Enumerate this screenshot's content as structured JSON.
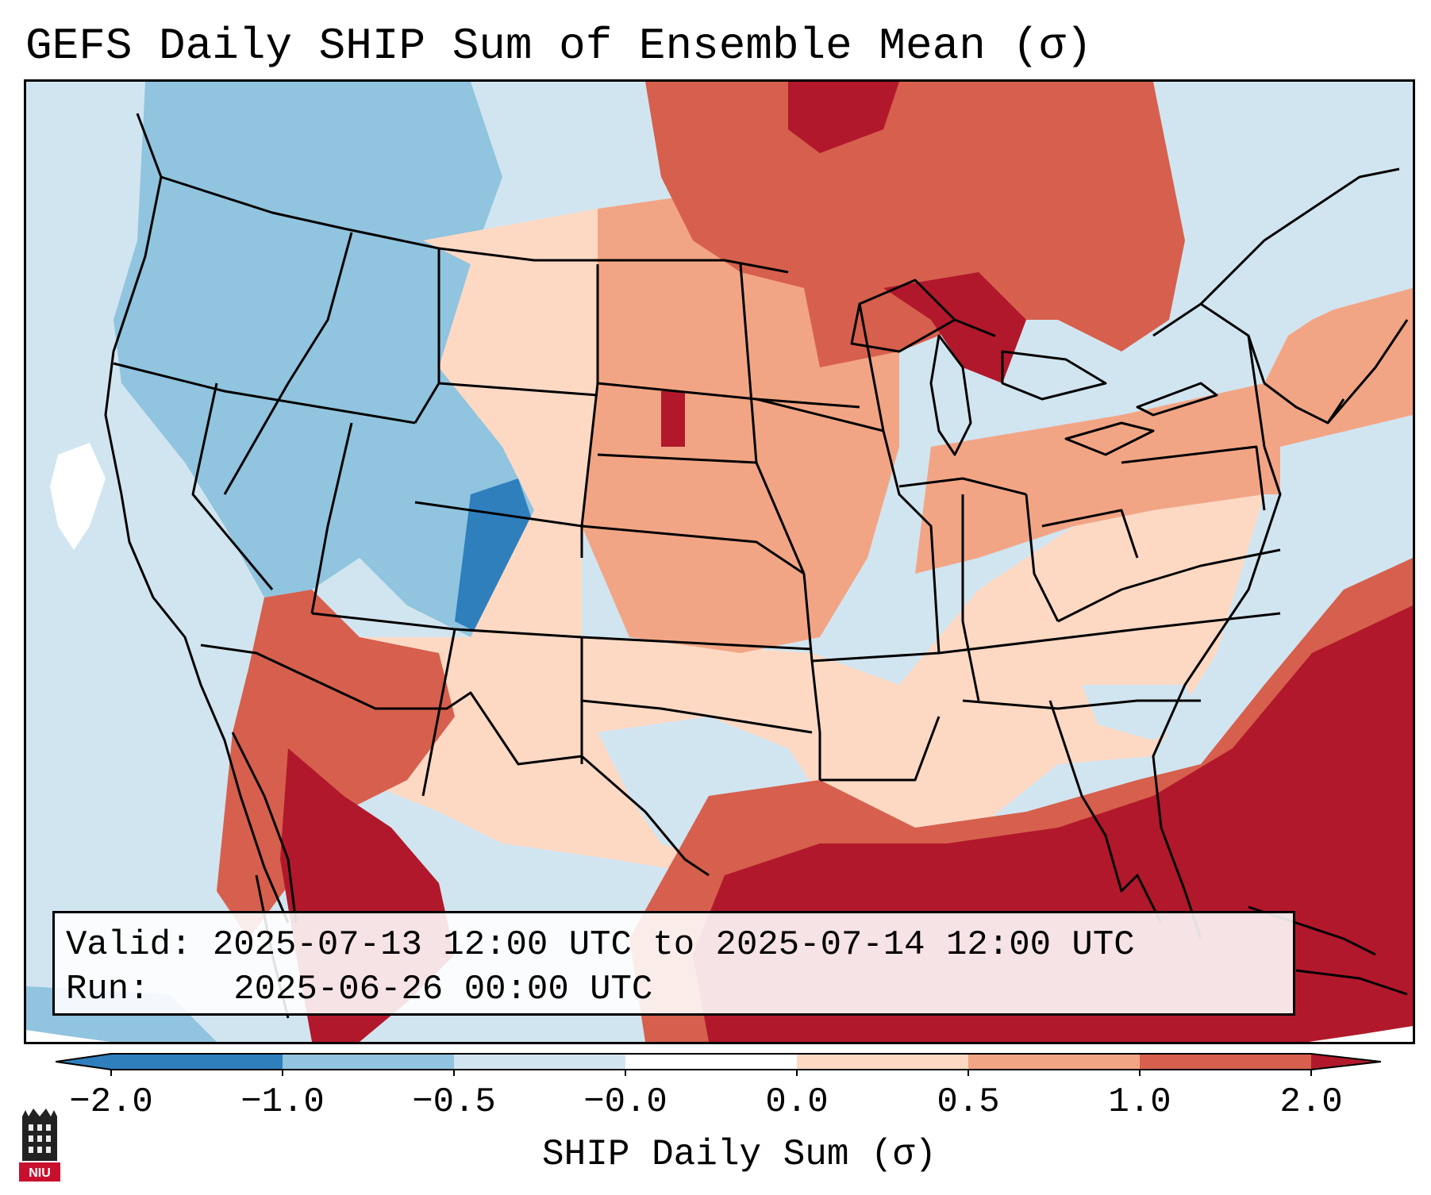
{
  "title": "GEFS Daily SHIP Sum of Ensemble Mean (σ)",
  "info": {
    "valid_label": "Valid:",
    "valid_value": "2025-07-13 12:00 UTC to 2025-07-14 12:00 UTC",
    "run_label": "Run:",
    "run_value": "2025-06-26 00:00 UTC"
  },
  "colorbar": {
    "label": "SHIP Daily Sum (σ)",
    "ticks": [
      "−2.0",
      "−1.0",
      "−0.5",
      "−0.0",
      "0.0",
      "0.5",
      "1.0",
      "2.0"
    ],
    "colors": [
      "#2f7fbd",
      "#91c4de",
      "#d1e5f0",
      "#ffffff",
      "#fdd9c4",
      "#f2a585",
      "#d6604d",
      "#b2182b"
    ]
  },
  "logo": {
    "text": "NIU"
  }
}
